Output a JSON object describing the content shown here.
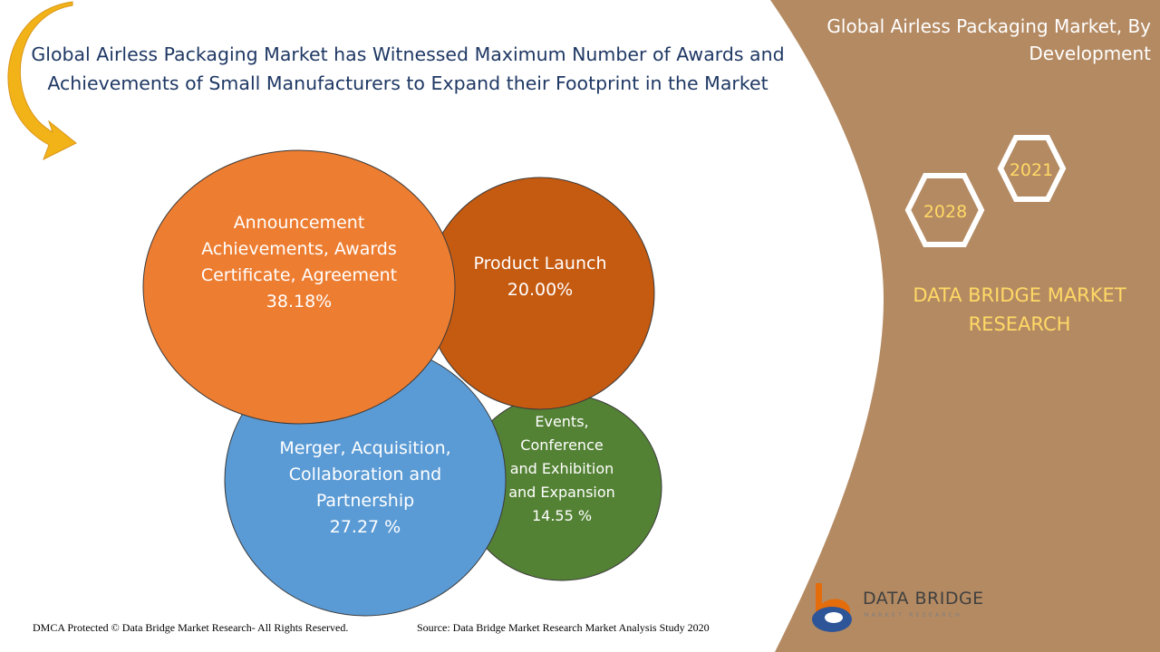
{
  "title": "Global Airless Packaging Market has Witnessed Maximum Number of Awards and Achievements  of Small Manufacturers to Expand their Footprint in the Market",
  "panel": {
    "title": "Global Airless Packaging Market, By Development",
    "year_start": "2021",
    "year_end": "2028",
    "brand": "DATA BRIDGE MARKET RESEARCH",
    "color": "#b48a62"
  },
  "chart_data": {
    "type": "bubble",
    "series": [
      {
        "label": [
          "Announcement",
          "Achievements, Awards",
          "Certificate, Agreement"
        ],
        "value": "38.18%",
        "share": 38.18,
        "color": "#ed7d31"
      },
      {
        "label": [
          "Product Launch"
        ],
        "value": "20.00%",
        "share": 20.0,
        "color": "#c55a11"
      },
      {
        "label": [
          "Merger, Acquisition,",
          "Collaboration and",
          "Partnership"
        ],
        "value": "27.27 %",
        "share": 27.27,
        "color": "#5b9bd5"
      },
      {
        "label": [
          "Events,",
          "Conference",
          "and Exhibition",
          "and Expansion"
        ],
        "value": "14.55 %",
        "share": 14.55,
        "color": "#548235"
      }
    ]
  },
  "footer": {
    "copyright": "DMCA Protected © Data Bridge Market Research- All Rights Reserved.",
    "source": "Source: Data Bridge Market Research Market Analysis Study 2020"
  },
  "logo": {
    "name": "DATA BRIDGE",
    "tagline": "MARKET RESEARCH"
  }
}
